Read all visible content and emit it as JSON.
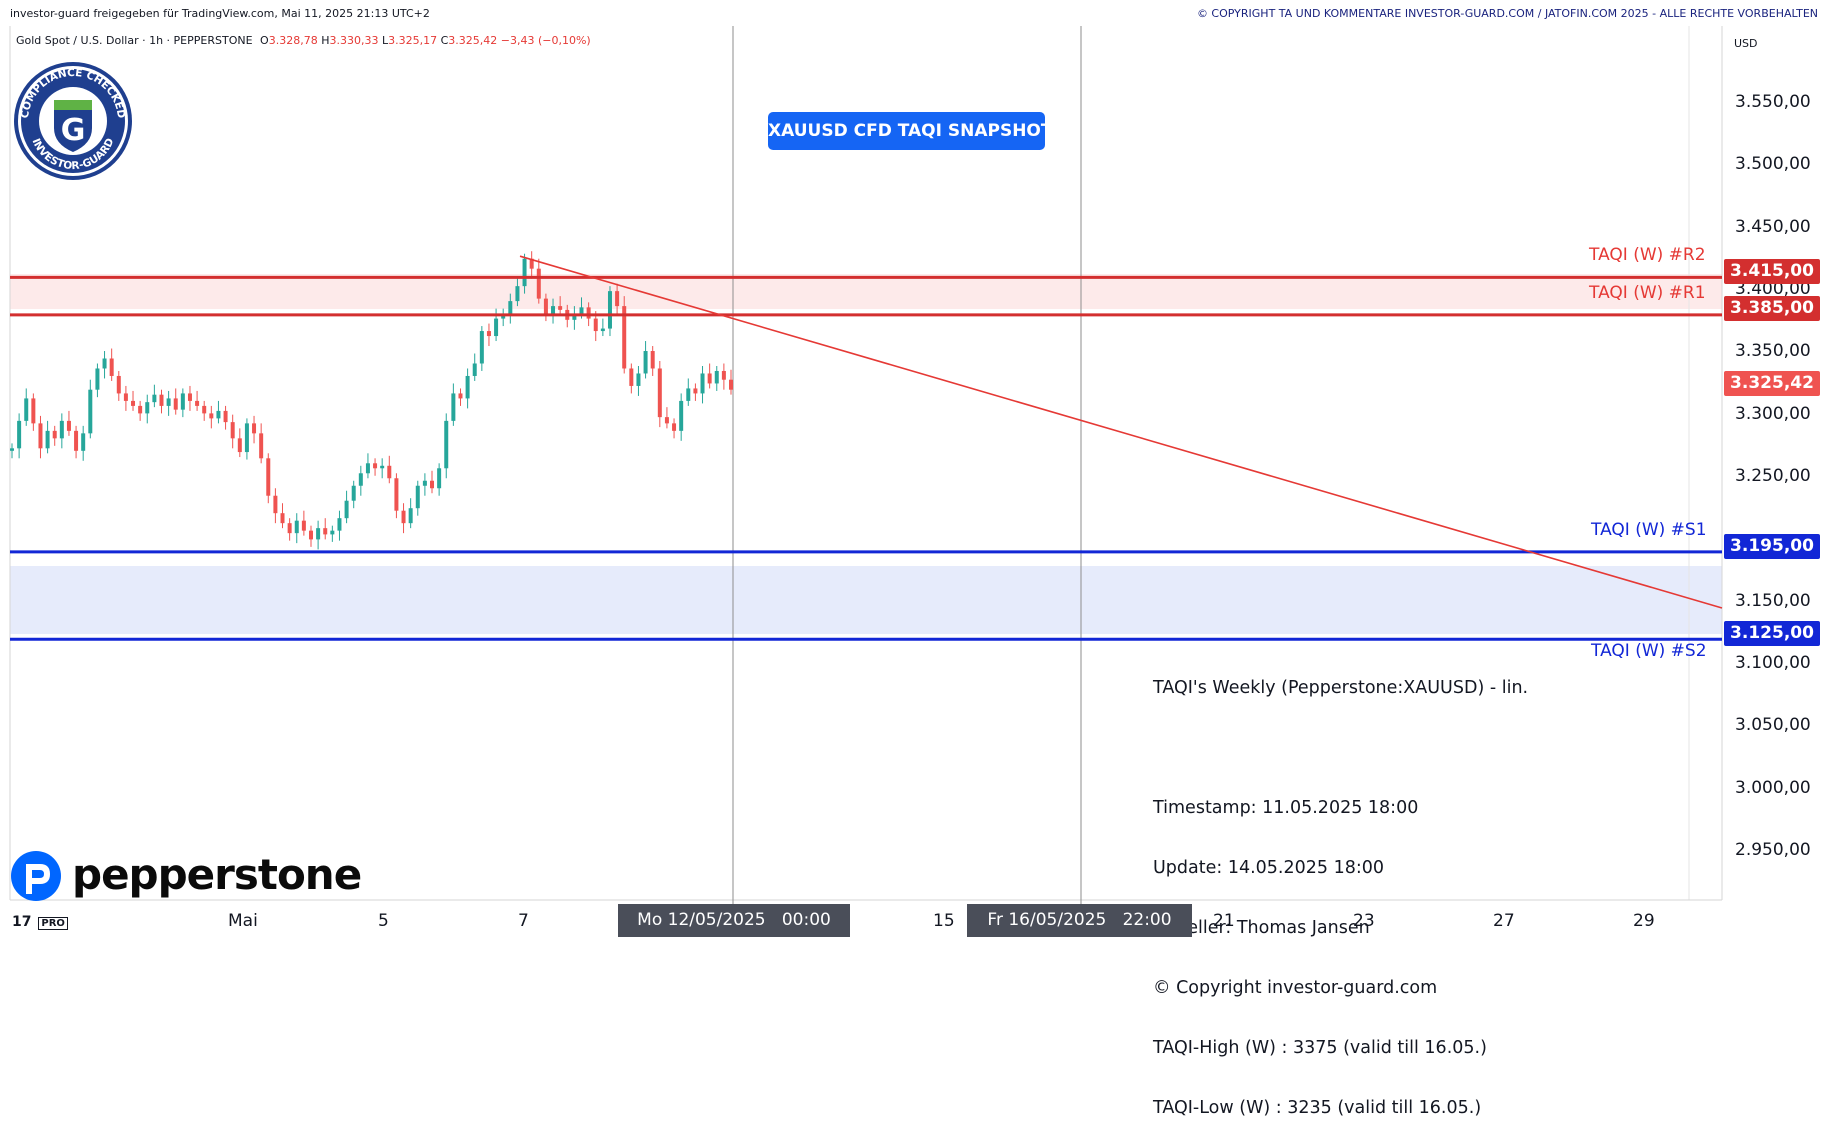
{
  "header": {
    "left_text": "investor-guard freigegeben für TradingView.com, Mai 11, 2025 21:13 UTC+2",
    "right_text": "© COPYRIGHT TA UND KOMMENTARE INVESTOR-GUARD.COM / JATOFIN.COM 2025 - ALLE RECHTE VORBEHALTEN"
  },
  "legend": {
    "symbol": "Gold Spot / U.S. Dollar · 1h · PEPPERSTONE",
    "o_label": "O",
    "o": "3.328,78",
    "h_label": "H",
    "h": "3.330,33",
    "l_label": "L",
    "l": "3.325,17",
    "c_label": "C",
    "c": "3.325,42",
    "change": "−3,43 (−0,10%)"
  },
  "badge": {
    "text_top": "COMPLIANCE CHECKED",
    "text_bottom": "INVESTOR-GUARD",
    "letter": "G"
  },
  "snapshot_label": "XAUUSD CFD TAQI SNAPSHOT",
  "info": {
    "title": "TAQI's Weekly (Pepperstone:XAUUSD) - lin.",
    "lines": [
      "Timestamp: 11.05.2025 18:00",
      "Update: 14.05.2025 18:00",
      "Ersteller: Thomas Jansen",
      "© Copyright investor-guard.com",
      "TAQI-High (W) : 3375 (valid till 16.05.)",
      "TAQI-Low (W) : 3235 (valid till 16.05.)"
    ]
  },
  "levels": {
    "r2": {
      "label": "TAQI (W) #R2",
      "price": "3.415,00",
      "value": 3415
    },
    "r1": {
      "label": "TAQI (W) #R1",
      "price": "3.385,00",
      "value": 3385
    },
    "s1": {
      "label": "TAQI (W) #S1",
      "price": "3.195,00",
      "value": 3195
    },
    "s2": {
      "label": "TAQI (W) #S2",
      "price": "3.125,00",
      "value": 3125
    },
    "last": {
      "price": "3.325,42",
      "value": 3325.42
    }
  },
  "colors": {
    "resistance": "#e53935",
    "support": "#1227d6",
    "up_candle": "#26a69a",
    "down_candle": "#ef5350",
    "accent": "#1565f4"
  },
  "axis": {
    "currency": "USD",
    "y_ticks": [
      "3.550,00",
      "3.500,00",
      "3.450,00",
      "3.400,00",
      "3.350,00",
      "3.300,00",
      "3.250,00",
      "3.150,00",
      "3.100,00",
      "3.050,00",
      "3.000,00",
      "2.950,00"
    ],
    "x_ticks": [
      "Mai",
      "5",
      "7",
      "15",
      "21",
      "23",
      "27",
      "29"
    ],
    "cursor_left": {
      "date": "Mo 12/05/2025",
      "time": "00:00"
    },
    "cursor_right": {
      "date": "Fr 16/05/2025",
      "time": "22:00"
    }
  },
  "brand": {
    "name": "pepperstone",
    "platform": "PRO"
  },
  "chart_data": {
    "type": "candlestick",
    "title": "Gold Spot / U.S. Dollar · 1h · PEPPERSTONE",
    "ylim": [
      2915,
      3585
    ],
    "grid": false,
    "series": [
      {
        "name": "Gold Spot / U.S. Dollar",
        "close_path": [
          3278,
          3300,
          3318,
          3298,
          3278,
          3292,
          3286,
          3300,
          3292,
          3276,
          3290,
          3325,
          3342,
          3350,
          3336,
          3322,
          3316,
          3312,
          3306,
          3315,
          3321,
          3312,
          3318,
          3309,
          3322,
          3316,
          3312,
          3306,
          3302,
          3308,
          3299,
          3286,
          3275,
          3298,
          3290,
          3270,
          3240,
          3226,
          3218,
          3210,
          3220,
          3212,
          3205,
          3214,
          3209,
          3212,
          3222,
          3236,
          3248,
          3258,
          3266,
          3262,
          3264,
          3254,
          3228,
          3218,
          3230,
          3248,
          3252,
          3246,
          3262,
          3300,
          3322,
          3318,
          3336,
          3346,
          3372,
          3368,
          3382,
          3386,
          3396,
          3408,
          3430,
          3422,
          3398,
          3386,
          3392,
          3389,
          3381,
          3386,
          3391,
          3382,
          3372,
          3374,
          3404,
          3392,
          3342,
          3328,
          3338,
          3356,
          3342,
          3303,
          3298,
          3292,
          3316,
          3326,
          3322,
          3338,
          3330,
          3340,
          3333,
          3325
        ]
      },
      {
        "name": "TAQI (W) #R2",
        "value": 3415
      },
      {
        "name": "TAQI (W) #R1",
        "value": 3385
      },
      {
        "name": "TAQI (W) #S1",
        "value": 3195
      },
      {
        "name": "TAQI (W) #S2",
        "value": 3125
      }
    ],
    "trendline": {
      "from": {
        "x": "7",
        "y": 3432
      },
      "to": {
        "x": "29+",
        "y": 3150
      }
    },
    "xlabel": "",
    "ylabel": ""
  }
}
